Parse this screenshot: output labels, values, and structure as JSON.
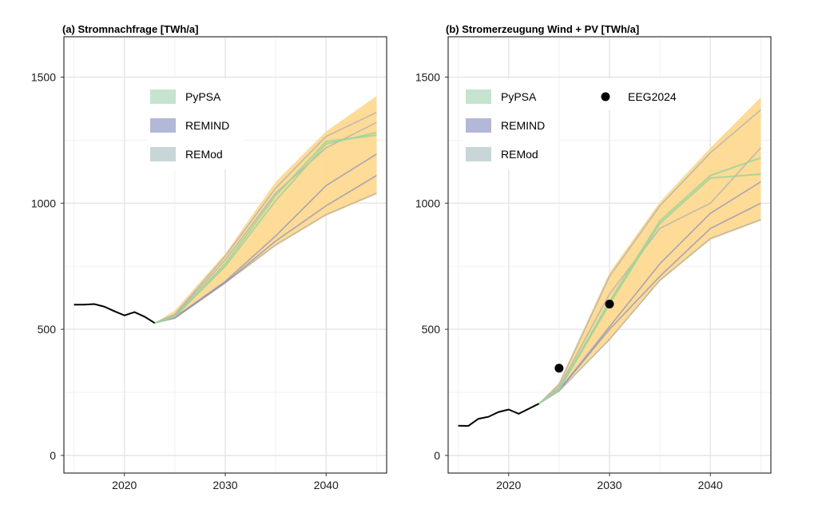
{
  "chart_data": [
    {
      "type": "line",
      "title": "(a) Stromnachfrage [TWh/a]",
      "xlabel": "",
      "ylabel": "",
      "xlim": [
        2014,
        2046
      ],
      "ylim": [
        -70,
        1660
      ],
      "x_ticks": [
        2020,
        2030,
        2040
      ],
      "y_ticks": [
        0,
        500,
        1000,
        1500
      ],
      "grid": true,
      "legend": {
        "position": "top-center",
        "entries": [
          {
            "name": "PyPSA",
            "color": "#c5e3cf"
          },
          {
            "name": "REMIND",
            "color": "#b3b8d9"
          },
          {
            "name": "REMod",
            "color": "#c8d6d8"
          }
        ]
      },
      "historical": {
        "x": [
          2015,
          2016,
          2017,
          2018,
          2019,
          2020,
          2021,
          2022,
          2023
        ],
        "y": [
          598,
          598,
          600,
          590,
          572,
          555,
          568,
          550,
          525
        ]
      },
      "band": {
        "x": [
          2023,
          2025,
          2030,
          2035,
          2040,
          2045
        ],
        "lower": [
          525,
          540,
          680,
          830,
          950,
          1035
        ],
        "upper": [
          525,
          575,
          800,
          1085,
          1285,
          1425
        ]
      },
      "series": [
        {
          "model": "PyPSA",
          "x": [
            2023,
            2025,
            2030,
            2035,
            2040,
            2045
          ],
          "y": [
            525,
            550,
            760,
            1030,
            1245,
            1270
          ]
        },
        {
          "model": "PyPSA",
          "x": [
            2023,
            2025,
            2030,
            2035,
            2040,
            2045
          ],
          "y": [
            525,
            550,
            750,
            1010,
            1235,
            1280
          ]
        },
        {
          "model": "REMIND",
          "x": [
            2023,
            2025,
            2030,
            2035,
            2040,
            2045
          ],
          "y": [
            525,
            548,
            690,
            870,
            1070,
            1195
          ]
        },
        {
          "model": "REMIND",
          "x": [
            2023,
            2025,
            2030,
            2035,
            2040,
            2045
          ],
          "y": [
            525,
            545,
            685,
            850,
            990,
            1110
          ]
        },
        {
          "model": "REMod",
          "x": [
            2023,
            2025,
            2030,
            2035,
            2040,
            2045
          ],
          "y": [
            525,
            560,
            790,
            1060,
            1265,
            1360
          ]
        },
        {
          "model": "REMod",
          "x": [
            2023,
            2025,
            2030,
            2035,
            2040,
            2045
          ],
          "y": [
            525,
            555,
            775,
            1040,
            1220,
            1320
          ]
        },
        {
          "model": "REMod",
          "x": [
            2023,
            2025,
            2030,
            2035,
            2040,
            2045
          ],
          "y": [
            525,
            545,
            685,
            835,
            955,
            1040
          ]
        }
      ]
    },
    {
      "type": "line",
      "title": "(b) Stromerzeugung Wind + PV [TWh/a]",
      "xlabel": "",
      "ylabel": "",
      "xlim": [
        2014,
        2046
      ],
      "ylim": [
        -70,
        1660
      ],
      "x_ticks": [
        2020,
        2030,
        2040
      ],
      "y_ticks": [
        0,
        500,
        1000,
        1500
      ],
      "grid": true,
      "legend": {
        "position": "top",
        "entries": [
          {
            "name": "PyPSA",
            "color": "#c5e3cf"
          },
          {
            "name": "REMIND",
            "color": "#b3b8d9"
          },
          {
            "name": "REMod",
            "color": "#c8d6d8"
          },
          {
            "name": "EEG2024",
            "color": "#000000",
            "marker": "point"
          }
        ]
      },
      "historical": {
        "x": [
          2015,
          2016,
          2017,
          2018,
          2019,
          2020,
          2021,
          2022,
          2023
        ],
        "y": [
          118,
          117,
          145,
          153,
          172,
          182,
          165,
          185,
          205
        ]
      },
      "targets": {
        "name": "EEG2024",
        "x": [
          2025,
          2030
        ],
        "y": [
          346,
          600
        ]
      },
      "band": {
        "x": [
          2023,
          2025,
          2030,
          2035,
          2040,
          2045
        ],
        "lower": [
          205,
          255,
          455,
          690,
          855,
          930
        ],
        "upper": [
          205,
          290,
          725,
          1005,
          1220,
          1420
        ]
      },
      "series": [
        {
          "model": "PyPSA",
          "x": [
            2023,
            2025,
            2030,
            2035,
            2040,
            2045
          ],
          "y": [
            205,
            260,
            600,
            920,
            1100,
            1115
          ]
        },
        {
          "model": "PyPSA",
          "x": [
            2023,
            2025,
            2030,
            2035,
            2040,
            2045
          ],
          "y": [
            205,
            262,
            610,
            930,
            1110,
            1180
          ]
        },
        {
          "model": "REMIND",
          "x": [
            2023,
            2025,
            2030,
            2035,
            2040,
            2045
          ],
          "y": [
            205,
            258,
            510,
            760,
            960,
            1085
          ]
        },
        {
          "model": "REMIND",
          "x": [
            2023,
            2025,
            2030,
            2035,
            2040,
            2045
          ],
          "y": [
            205,
            258,
            500,
            710,
            900,
            1000
          ]
        },
        {
          "model": "REMod",
          "x": [
            2023,
            2025,
            2030,
            2035,
            2040,
            2045
          ],
          "y": [
            205,
            280,
            710,
            990,
            1200,
            1370
          ]
        },
        {
          "model": "REMod",
          "x": [
            2023,
            2025,
            2030,
            2035,
            2040,
            2045
          ],
          "y": [
            205,
            270,
            640,
            900,
            1000,
            1220
          ]
        },
        {
          "model": "REMod",
          "x": [
            2023,
            2025,
            2030,
            2035,
            2040,
            2045
          ],
          "y": [
            205,
            255,
            460,
            695,
            860,
            935
          ]
        }
      ]
    }
  ],
  "style": {
    "band_color": "#fed990",
    "model_colors": {
      "PyPSA": "#9fd39a",
      "REMIND": "#8c91bd",
      "REMod": "#a8b0b3"
    },
    "historical_color": "#000000",
    "grid_major_color": "#e6e6e6",
    "grid_minor_color": "#f1f1f1",
    "axis_color": "#333333"
  }
}
